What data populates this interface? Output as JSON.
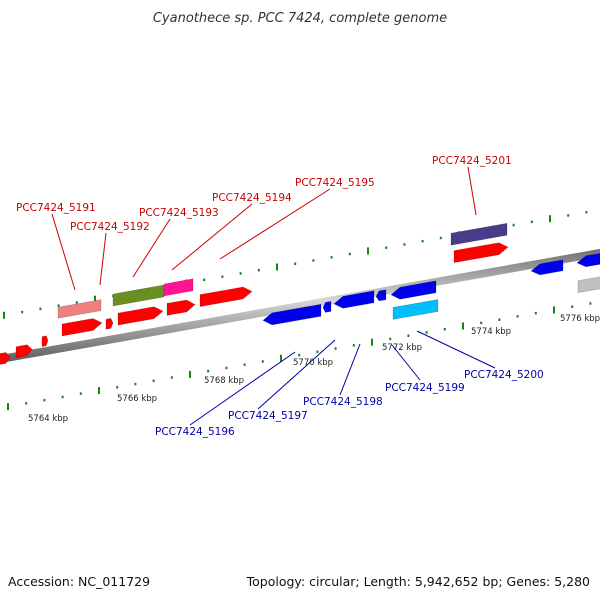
{
  "title": "Cyanothece sp. PCC 7424, complete genome",
  "footer": {
    "accession": "Accession: NC_011729",
    "summary": "Topology: circular; Length: 5,942,652 bp; Genes: 5,280"
  },
  "colors": {
    "forward_label": "#cc0000",
    "reverse_label": "#0000aa",
    "backbone": "#808080",
    "tick": "#118811"
  },
  "scale_labels": [
    "5764 kbp",
    "5766 kbp",
    "5768 kbp",
    "5770 kbp",
    "5772 kbp",
    "5774 kbp",
    "5776 kbp"
  ],
  "forward_genes": [
    "PCC7424_5191",
    "PCC7424_5192",
    "PCC7424_5193",
    "PCC7424_5194",
    "PCC7424_5195",
    "PCC7424_5201"
  ],
  "reverse_genes": [
    "PCC7424_5196",
    "PCC7424_5197",
    "PCC7424_5198",
    "PCC7424_5199",
    "PCC7424_5200"
  ]
}
